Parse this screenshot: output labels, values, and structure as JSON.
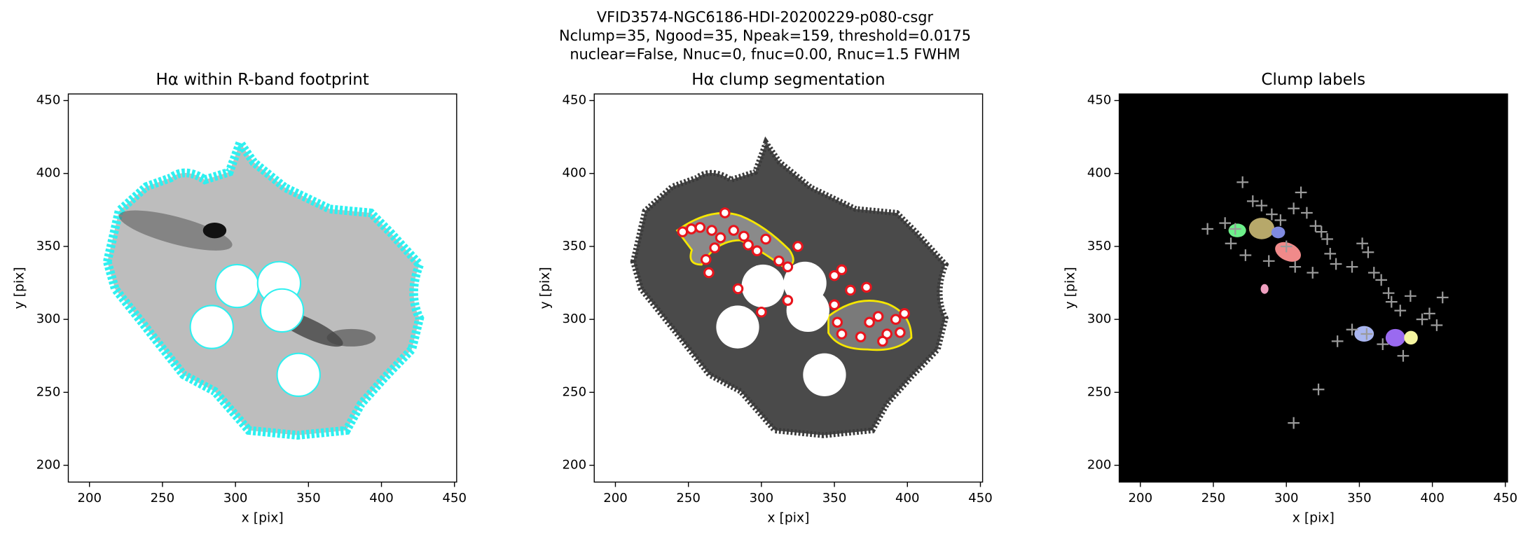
{
  "suptitle": [
    "VFID3574-NGC6186-HDI-20200229-p080-csgr",
    "Nclump=35, Ngood=35, Npeak=159, threshold=0.0175",
    "nuclear=False, Nnuc=0, fnuc=0.00, Rnuc=1.5 FWHM"
  ],
  "chart_data": [
    {
      "type": "image",
      "title": "Hα within R-band footprint",
      "x_label": "x [pix]",
      "y_label": "y [pix]",
      "xlim": [
        185.5,
        451.5
      ],
      "ylim": [
        188.5,
        454.5
      ],
      "xticks": [
        200,
        250,
        300,
        350,
        400,
        450
      ],
      "yticks": [
        200,
        250,
        300,
        350,
        400,
        450
      ],
      "background": "#ffffff"
    },
    {
      "type": "image",
      "title": "Hα clump segmentation",
      "x_label": "x [pix]",
      "y_label": "y [pix]",
      "xlim": [
        185.5,
        451.5
      ],
      "ylim": [
        188.5,
        454.5
      ],
      "xticks": [
        200,
        250,
        300,
        350,
        400,
        450
      ],
      "yticks": [
        200,
        250,
        300,
        350,
        400,
        450
      ],
      "background": "#ffffff",
      "marker": "circle",
      "color": "#e8141c",
      "points": {
        "x": [
          246,
          252,
          258,
          266,
          275,
          272,
          281,
          288,
          297,
          303,
          291,
          268,
          262,
          264,
          284,
          300,
          318,
          312,
          318,
          325,
          350,
          355,
          361,
          372,
          350,
          352,
          355,
          368,
          374,
          380,
          386,
          383,
          395,
          398,
          392
        ],
        "y": [
          360,
          362,
          363,
          361,
          373,
          356,
          361,
          357,
          347,
          355,
          351,
          349,
          341,
          332,
          321,
          305,
          313,
          340,
          336,
          350,
          330,
          334,
          320,
          322,
          310,
          298,
          290,
          288,
          298,
          302,
          290,
          285,
          291,
          304,
          300
        ]
      }
    },
    {
      "type": "image",
      "title": "Clump labels",
      "x_label": "x [pix]",
      "y_label": "y [pix]",
      "xlim": [
        185.5,
        451.5
      ],
      "ylim": [
        188.5,
        454.5
      ],
      "xticks": [
        200,
        250,
        300,
        350,
        400,
        450
      ],
      "yticks": [
        200,
        250,
        300,
        350,
        400,
        450
      ],
      "background": "#000000",
      "marker": "plus",
      "color": "#9a9a9a",
      "points": {
        "x": [
          270,
          277,
          283,
          258,
          265,
          290,
          296,
          310,
          305,
          314,
          320,
          324,
          328,
          246,
          262,
          272,
          288,
          300,
          306,
          318,
          330,
          334,
          345,
          352,
          356,
          360,
          365,
          370,
          372,
          378,
          385,
          393,
          398,
          403,
          407,
          345,
          355,
          335,
          322,
          305,
          366,
          380
        ],
        "y": [
          394,
          381,
          378,
          366,
          362,
          372,
          368,
          387,
          376,
          373,
          364,
          360,
          355,
          362,
          352,
          344,
          340,
          350,
          336,
          332,
          345,
          338,
          336,
          352,
          346,
          332,
          327,
          318,
          312,
          306,
          316,
          300,
          304,
          296,
          315,
          293,
          290,
          285,
          252,
          229,
          283,
          275
        ]
      }
    }
  ]
}
